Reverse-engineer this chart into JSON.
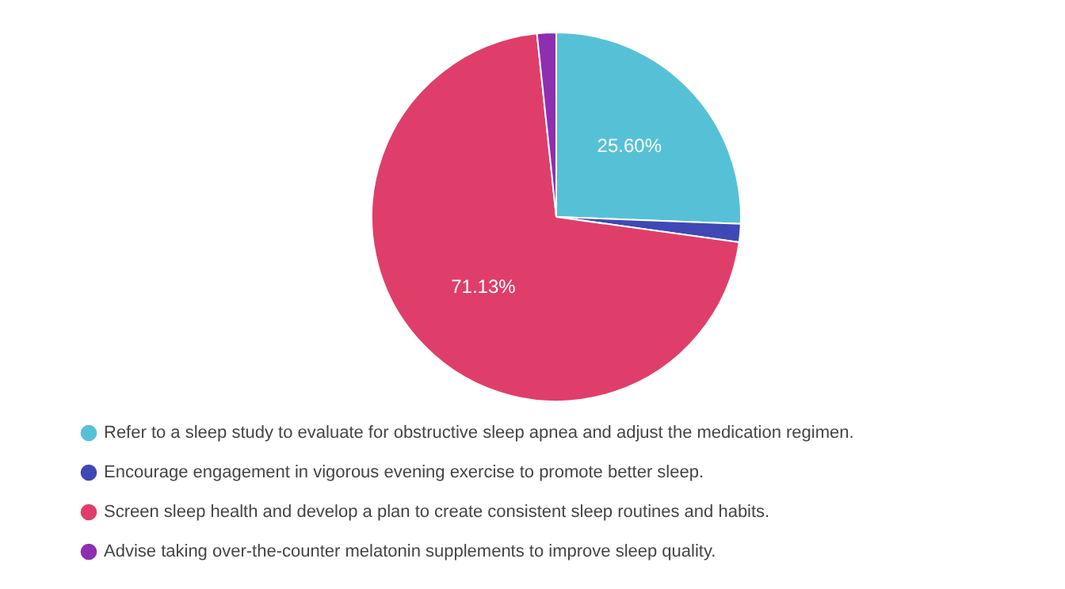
{
  "chart_data": {
    "type": "pie",
    "categories": [
      "Refer to a sleep study to evaluate for obstructive sleep apnea and adjust the medication regimen.",
      "Encourage engagement in vigorous evening exercise to promote better sleep.",
      "Screen sleep health and develop a plan to create consistent sleep routines and habits.",
      "Advise taking over-the-counter melatonin supplements to improve sleep quality."
    ],
    "values": [
      25.6,
      1.6,
      71.13,
      1.67
    ],
    "value_labels": [
      "25.60%",
      null,
      "71.13%",
      null
    ],
    "colors": [
      "#56c1d6",
      "#3f48b5",
      "#e03e6a",
      "#8e2fb0"
    ],
    "legend": "bottom"
  }
}
